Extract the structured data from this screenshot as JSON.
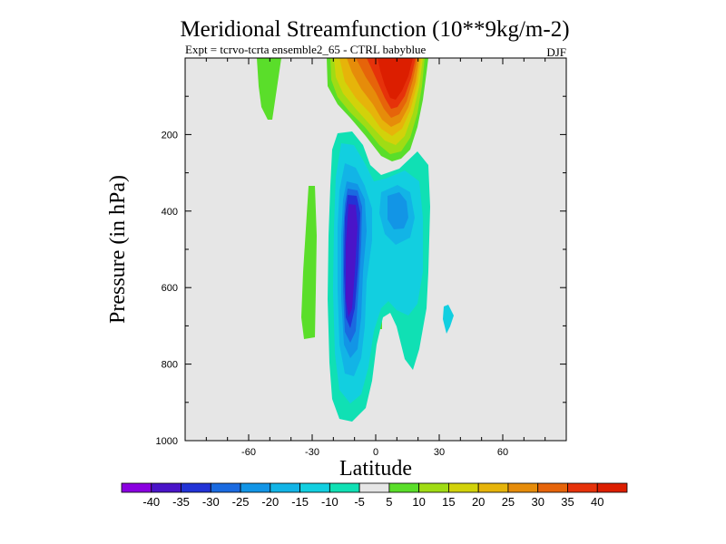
{
  "chart_data": {
    "type": "contour",
    "title": "Meridional Streamfunction (10**9kg/m-2)",
    "subtitle": "Expt = tcrvo-tcrta  ensemble2_65 - CTRL babyblue",
    "season": "DJF",
    "xlabel": "Latitude",
    "ylabel": "Pressure (in hPa)",
    "xlim": [
      -90,
      90
    ],
    "ylim": [
      1000,
      0
    ],
    "x_ticks": [
      -60,
      -30,
      0,
      30,
      60
    ],
    "y_ticks": [
      200,
      400,
      600,
      800,
      1000
    ],
    "colorbar": {
      "levels": [
        "-40",
        "-35",
        "-30",
        "-25",
        "-20",
        "-15",
        "-10",
        "-5",
        "5",
        "10",
        "15",
        "20",
        "25",
        "30",
        "35",
        "40"
      ],
      "colors": [
        "#8a00e0",
        "#4a14c8",
        "#2233d6",
        "#1a6ae0",
        "#1295e6",
        "#12b4e6",
        "#12cfe0",
        "#10e0b4",
        "#e6e6e6",
        "#5ade2a",
        "#a0dc14",
        "#d2d20a",
        "#e6b40a",
        "#e68c0a",
        "#e6640a",
        "#e6320a",
        "#dc1e00"
      ]
    },
    "features": [
      {
        "name": "positive cell upper troposphere",
        "lat_range": [
          -20,
          25
        ],
        "pressure_range": [
          0,
          270
        ],
        "max_value": 40,
        "center_lat": 8
      },
      {
        "name": "negative cell",
        "lat_range": [
          -20,
          25
        ],
        "pressure_range": [
          230,
          960
        ],
        "min_value": -35,
        "center_lat": -13
      },
      {
        "name": "weak positive band",
        "lat_range": [
          -35,
          -27
        ],
        "pressure_range": [
          390,
          740
        ],
        "value": 5
      },
      {
        "name": "weak positive patch",
        "lat_range": [
          -53,
          -45
        ],
        "pressure_range": [
          0,
          165
        ],
        "value": 5
      }
    ]
  }
}
